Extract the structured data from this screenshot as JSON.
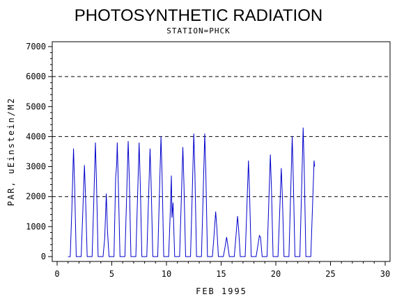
{
  "chart_data": {
    "type": "line",
    "title": "PHOTOSYNTHETIC RADIATION",
    "subtitle": "STATION=PHCK",
    "xlabel": "FEB 1995",
    "ylabel": "PAR, uEinstein/M2",
    "xlim": [
      0,
      30
    ],
    "ylim": [
      0,
      7000
    ],
    "x_ticks": [
      0,
      5,
      10,
      15,
      20,
      25,
      30
    ],
    "y_ticks": [
      0,
      1000,
      2000,
      3000,
      4000,
      5000,
      6000,
      7000
    ],
    "reference_lines": [
      2000,
      4000,
      6000
    ],
    "line_color": "#0000cc",
    "series": [
      {
        "x": [
          1.0,
          1.2,
          1.35,
          1.5,
          1.6,
          1.75,
          2.2,
          2.35,
          2.5,
          2.6,
          2.75,
          3.2,
          3.35,
          3.5,
          3.6,
          3.75,
          4.2,
          4.35,
          4.5,
          4.6,
          4.75,
          5.2,
          5.35,
          5.45,
          5.5,
          5.6,
          5.75,
          6.2,
          6.35,
          6.5,
          6.6,
          6.75,
          7.2,
          7.35,
          7.5,
          7.6,
          7.75,
          8.2,
          8.35,
          8.5,
          8.6,
          8.75,
          9.2,
          9.35,
          9.5,
          9.6,
          9.75,
          10.2,
          10.35,
          10.45,
          10.5,
          10.6,
          10.75,
          11.2,
          11.35,
          11.5,
          11.6,
          11.75,
          12.2,
          12.35,
          12.5,
          12.6,
          12.75,
          13.2,
          13.35,
          13.5,
          13.6,
          13.75,
          14.2,
          14.35,
          14.5,
          14.6,
          14.75,
          15.2,
          15.35,
          15.5,
          15.6,
          15.75,
          16.2,
          16.35,
          16.5,
          16.6,
          16.75,
          17.2,
          17.35,
          17.5,
          17.6,
          17.75,
          18.2,
          18.35,
          18.5,
          18.6,
          18.75,
          19.2,
          19.35,
          19.5,
          19.6,
          19.75,
          20.2,
          20.35,
          20.5,
          20.6,
          20.75,
          21.2,
          21.35,
          21.5,
          21.6,
          21.75,
          22.2,
          22.35,
          22.5,
          22.6,
          22.75,
          23.2,
          23.35,
          23.5,
          23.55
        ],
        "y": [
          0,
          0,
          1600,
          3600,
          2400,
          0,
          0,
          1500,
          3050,
          2000,
          0,
          0,
          1800,
          3800,
          2500,
          0,
          0,
          600,
          2100,
          900,
          0,
          0,
          2600,
          3100,
          3800,
          2400,
          0,
          0,
          1900,
          3850,
          2600,
          0,
          0,
          1900,
          3800,
          2500,
          0,
          0,
          1800,
          3600,
          2400,
          0,
          0,
          2000,
          4000,
          2700,
          0,
          0,
          1500,
          2700,
          1300,
          1800,
          0,
          0,
          1800,
          3650,
          2400,
          0,
          0,
          2000,
          4100,
          2800,
          0,
          0,
          2000,
          4100,
          2800,
          0,
          0,
          700,
          1500,
          1000,
          0,
          0,
          300,
          650,
          400,
          0,
          0,
          650,
          1350,
          900,
          0,
          0,
          1600,
          3200,
          2100,
          0,
          0,
          350,
          700,
          650,
          0,
          0,
          1700,
          3400,
          2300,
          0,
          0,
          1450,
          2950,
          2000,
          0,
          0,
          2000,
          4000,
          2600,
          0,
          0,
          2100,
          4300,
          2900,
          0,
          0,
          1600,
          3200,
          3000
        ]
      }
    ]
  }
}
